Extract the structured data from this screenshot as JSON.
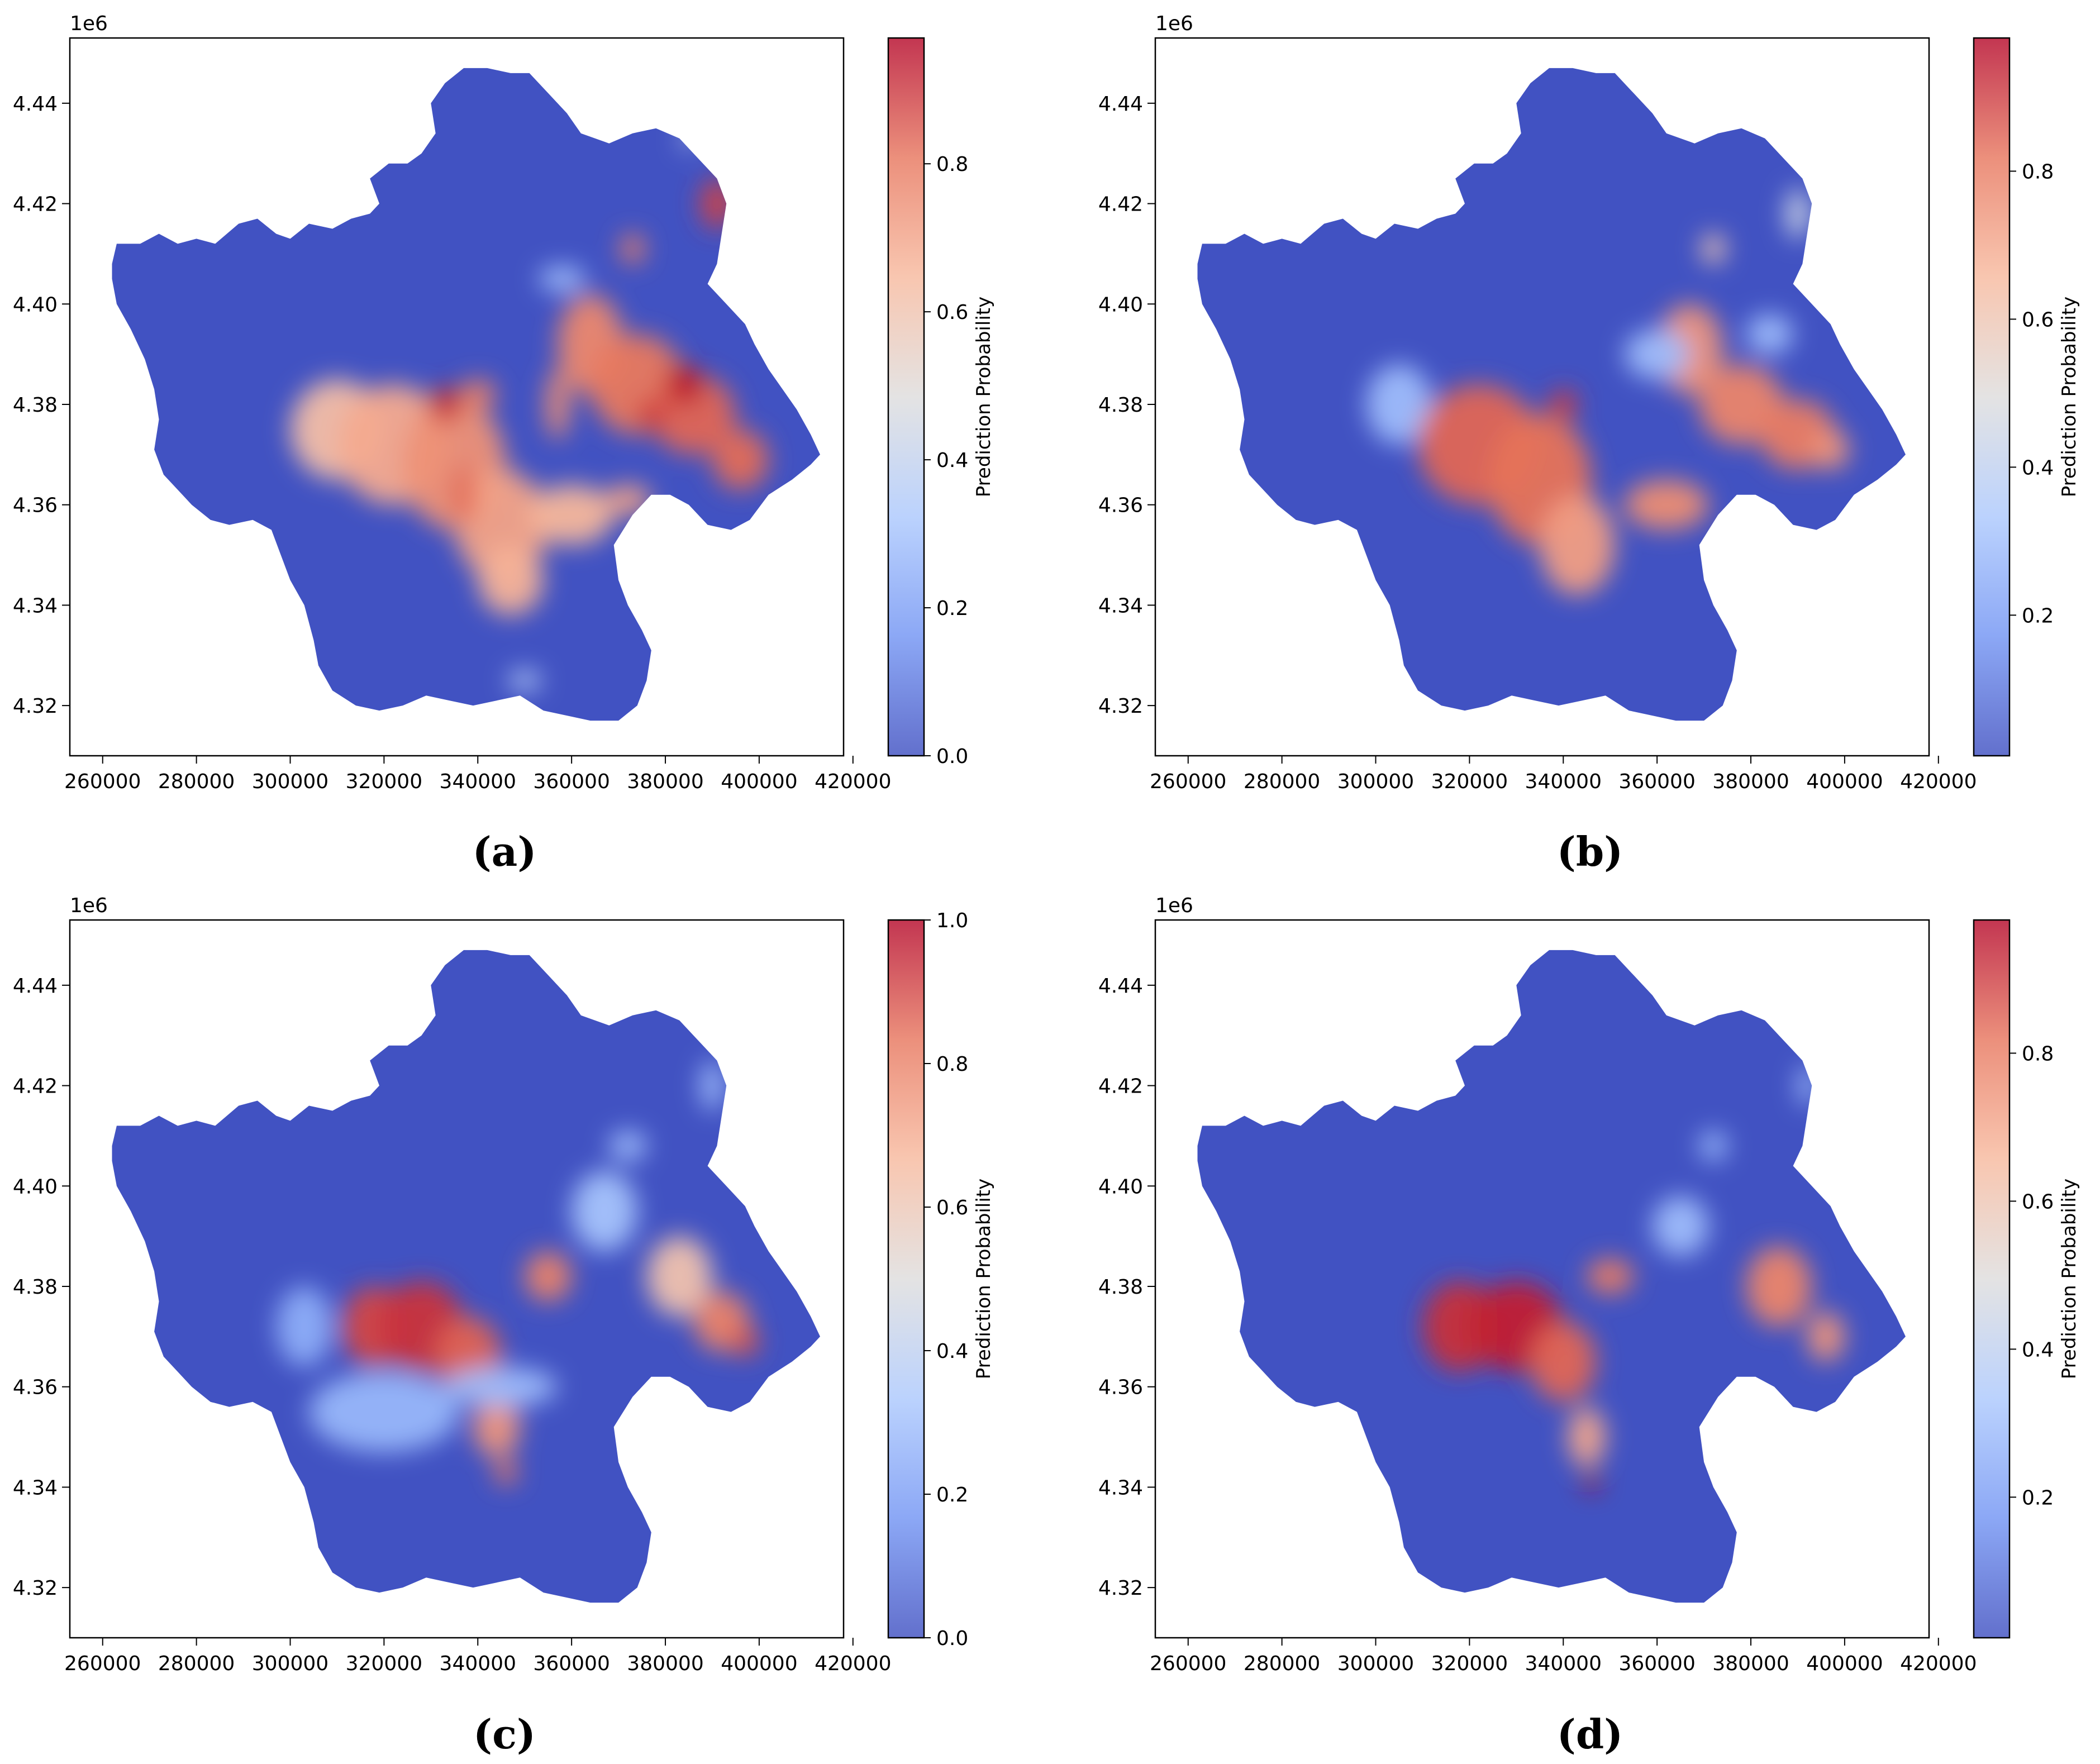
{
  "colormap": {
    "name": "coolwarm",
    "stops": [
      "#3b4cc0",
      "#6f92f3",
      "#aac7fd",
      "#dddcdc",
      "#f7b89c",
      "#e7745b",
      "#b40426"
    ],
    "region_fill": "#3b4cc0"
  },
  "chart_data": [
    {
      "type": "scatter",
      "panel_label": "(a)",
      "offset_text": "1e6",
      "x_ticks": [
        "260000",
        "280000",
        "300000",
        "320000",
        "340000",
        "360000",
        "380000",
        "400000",
        "420000"
      ],
      "y_ticks": [
        "4.44",
        "4.42",
        "4.40",
        "4.38",
        "4.36",
        "4.34",
        "4.32"
      ],
      "xlim": [
        253000,
        418000
      ],
      "ylim": [
        4310000,
        4453000
      ],
      "colorbar": {
        "label": "Prediction Probability",
        "ticks": [
          "0.0",
          "0.2",
          "0.4",
          "0.6",
          "0.8"
        ],
        "range": [
          0,
          0.97
        ]
      },
      "hotspots": [
        {
          "x": 310000,
          "y": 4375000,
          "rx": 10000,
          "ry": 10000,
          "value": 0.62
        },
        {
          "x": 322000,
          "y": 4372000,
          "rx": 12000,
          "ry": 12000,
          "value": 0.68
        },
        {
          "x": 335000,
          "y": 4368000,
          "rx": 11000,
          "ry": 13000,
          "value": 0.74
        },
        {
          "x": 345000,
          "y": 4356000,
          "rx": 10000,
          "ry": 11000,
          "value": 0.7
        },
        {
          "x": 347000,
          "y": 4345000,
          "rx": 7000,
          "ry": 7000,
          "value": 0.66
        },
        {
          "x": 360000,
          "y": 4358000,
          "rx": 9000,
          "ry": 6000,
          "value": 0.65
        },
        {
          "x": 372000,
          "y": 4361000,
          "rx": 5000,
          "ry": 3000,
          "value": 0.7
        },
        {
          "x": 333000,
          "y": 4380000,
          "rx": 3500,
          "ry": 3500,
          "value": 0.92
        },
        {
          "x": 337000,
          "y": 4362000,
          "rx": 2500,
          "ry": 6000,
          "value": 0.82
        },
        {
          "x": 340000,
          "y": 4382000,
          "rx": 4000,
          "ry": 3000,
          "value": 0.78
        },
        {
          "x": 364000,
          "y": 4392000,
          "rx": 7000,
          "ry": 10000,
          "value": 0.76
        },
        {
          "x": 374000,
          "y": 4384000,
          "rx": 10000,
          "ry": 10000,
          "value": 0.8
        },
        {
          "x": 386000,
          "y": 4378000,
          "rx": 9000,
          "ry": 8000,
          "value": 0.83
        },
        {
          "x": 396000,
          "y": 4369000,
          "rx": 6000,
          "ry": 6000,
          "value": 0.82
        },
        {
          "x": 384000,
          "y": 4384000,
          "rx": 4000,
          "ry": 4000,
          "value": 0.95
        },
        {
          "x": 377000,
          "y": 4378000,
          "rx": 3000,
          "ry": 3000,
          "value": 0.9
        },
        {
          "x": 391000,
          "y": 4420000,
          "rx": 3500,
          "ry": 5000,
          "value": 0.88
        },
        {
          "x": 373000,
          "y": 4411000,
          "rx": 2500,
          "ry": 3000,
          "value": 0.78
        },
        {
          "x": 357000,
          "y": 4380000,
          "rx": 2500,
          "ry": 7000,
          "value": 0.75
        },
        {
          "x": 358000,
          "y": 4405000,
          "rx": 5000,
          "ry": 2500,
          "value": 0.3
        },
        {
          "x": 350000,
          "y": 4325000,
          "rx": 3500,
          "ry": 2000,
          "value": 0.35
        },
        {
          "x": 385000,
          "y": 4433000,
          "rx": 1500,
          "ry": 2000,
          "value": 0.4
        }
      ]
    },
    {
      "type": "scatter",
      "panel_label": "(b)",
      "offset_text": "1e6",
      "x_ticks": [
        "260000",
        "280000",
        "300000",
        "320000",
        "340000",
        "360000",
        "380000",
        "400000",
        "420000"
      ],
      "y_ticks": [
        "4.44",
        "4.42",
        "4.40",
        "4.38",
        "4.36",
        "4.34",
        "4.32"
      ],
      "xlim": [
        253000,
        418000
      ],
      "ylim": [
        4310000,
        4453000
      ],
      "colorbar": {
        "label": "Prediction Probability",
        "ticks": [
          "0.2",
          "0.4",
          "0.6",
          "0.8"
        ],
        "range": [
          0.01,
          0.98
        ]
      },
      "hotspots": [
        {
          "x": 305000,
          "y": 4380000,
          "rx": 7000,
          "ry": 8000,
          "value": 0.3
        },
        {
          "x": 322000,
          "y": 4372000,
          "rx": 13000,
          "ry": 12000,
          "value": 0.84
        },
        {
          "x": 335000,
          "y": 4365000,
          "rx": 11000,
          "ry": 13000,
          "value": 0.82
        },
        {
          "x": 343000,
          "y": 4352000,
          "rx": 8000,
          "ry": 10000,
          "value": 0.72
        },
        {
          "x": 362000,
          "y": 4360000,
          "rx": 9000,
          "ry": 5000,
          "value": 0.76
        },
        {
          "x": 367000,
          "y": 4391000,
          "rx": 7000,
          "ry": 9000,
          "value": 0.74
        },
        {
          "x": 378000,
          "y": 4380000,
          "rx": 9000,
          "ry": 8000,
          "value": 0.78
        },
        {
          "x": 390000,
          "y": 4374000,
          "rx": 8000,
          "ry": 7000,
          "value": 0.8
        },
        {
          "x": 397000,
          "y": 4371000,
          "rx": 4000,
          "ry": 4000,
          "value": 0.74
        },
        {
          "x": 360000,
          "y": 4390000,
          "rx": 7000,
          "ry": 5000,
          "value": 0.3
        },
        {
          "x": 384000,
          "y": 4394000,
          "rx": 5000,
          "ry": 4000,
          "value": 0.3
        },
        {
          "x": 340000,
          "y": 4380000,
          "rx": 3000,
          "ry": 3000,
          "value": 0.9
        },
        {
          "x": 372000,
          "y": 4411000,
          "rx": 2500,
          "ry": 3000,
          "value": 0.6
        },
        {
          "x": 390000,
          "y": 4418000,
          "rx": 2500,
          "ry": 5000,
          "value": 0.45
        }
      ]
    },
    {
      "type": "scatter",
      "panel_label": "(c)",
      "offset_text": "1e6",
      "x_ticks": [
        "260000",
        "280000",
        "300000",
        "320000",
        "340000",
        "360000",
        "380000",
        "400000",
        "420000"
      ],
      "y_ticks": [
        "4.44",
        "4.42",
        "4.40",
        "4.38",
        "4.36",
        "4.34",
        "4.32"
      ],
      "xlim": [
        253000,
        418000
      ],
      "ylim": [
        4310000,
        4453000
      ],
      "colorbar": {
        "label": "Prediction Probability",
        "ticks": [
          "0.0",
          "0.2",
          "0.4",
          "0.6",
          "0.8",
          "1.0"
        ],
        "range": [
          0,
          1
        ]
      },
      "hotspots": [
        {
          "x": 320000,
          "y": 4355000,
          "rx": 16000,
          "ry": 8000,
          "value": 0.28
        },
        {
          "x": 303000,
          "y": 4372000,
          "rx": 6000,
          "ry": 8000,
          "value": 0.25
        },
        {
          "x": 318000,
          "y": 4372000,
          "rx": 7000,
          "ry": 8000,
          "value": 0.9
        },
        {
          "x": 328000,
          "y": 4372000,
          "rx": 9000,
          "ry": 9000,
          "value": 0.93
        },
        {
          "x": 338000,
          "y": 4366000,
          "rx": 7000,
          "ry": 8000,
          "value": 0.86
        },
        {
          "x": 344000,
          "y": 4352000,
          "rx": 5000,
          "ry": 6000,
          "value": 0.75
        },
        {
          "x": 346000,
          "y": 4343000,
          "rx": 2500,
          "ry": 2500,
          "value": 0.82
        },
        {
          "x": 355000,
          "y": 4382000,
          "rx": 5000,
          "ry": 5000,
          "value": 0.8
        },
        {
          "x": 367000,
          "y": 4395000,
          "rx": 7000,
          "ry": 8000,
          "value": 0.32
        },
        {
          "x": 383000,
          "y": 4382000,
          "rx": 7000,
          "ry": 8000,
          "value": 0.62
        },
        {
          "x": 392000,
          "y": 4373000,
          "rx": 6000,
          "ry": 6000,
          "value": 0.8
        },
        {
          "x": 397000,
          "y": 4369000,
          "rx": 3000,
          "ry": 3000,
          "value": 0.88
        },
        {
          "x": 372000,
          "y": 4408000,
          "rx": 4000,
          "ry": 3000,
          "value": 0.3
        },
        {
          "x": 390000,
          "y": 4420000,
          "rx": 2500,
          "ry": 5000,
          "value": 0.3
        },
        {
          "x": 345000,
          "y": 4360000,
          "rx": 12000,
          "ry": 4000,
          "value": 0.3
        }
      ]
    },
    {
      "type": "scatter",
      "panel_label": "(d)",
      "offset_text": "1e6",
      "x_ticks": [
        "260000",
        "280000",
        "300000",
        "320000",
        "340000",
        "360000",
        "380000",
        "400000",
        "420000"
      ],
      "y_ticks": [
        "4.44",
        "4.42",
        "4.40",
        "4.38",
        "4.36",
        "4.34",
        "4.32"
      ],
      "xlim": [
        253000,
        418000
      ],
      "ylim": [
        4310000,
        4453000
      ],
      "colorbar": {
        "label": "Prediction Probability",
        "ticks": [
          "0.2",
          "0.4",
          "0.6",
          "0.8"
        ],
        "range": [
          0.01,
          0.98
        ]
      },
      "hotspots": [
        {
          "x": 318000,
          "y": 4372000,
          "rx": 8000,
          "ry": 9000,
          "value": 0.92
        },
        {
          "x": 330000,
          "y": 4372000,
          "rx": 10000,
          "ry": 9000,
          "value": 0.94
        },
        {
          "x": 340000,
          "y": 4365000,
          "rx": 7000,
          "ry": 8000,
          "value": 0.84
        },
        {
          "x": 345000,
          "y": 4350000,
          "rx": 4000,
          "ry": 6000,
          "value": 0.7
        },
        {
          "x": 346000,
          "y": 4341000,
          "rx": 1800,
          "ry": 1800,
          "value": 0.98
        },
        {
          "x": 350000,
          "y": 4382000,
          "rx": 5000,
          "ry": 3500,
          "value": 0.8
        },
        {
          "x": 365000,
          "y": 4392000,
          "rx": 6000,
          "ry": 6000,
          "value": 0.3
        },
        {
          "x": 386000,
          "y": 4380000,
          "rx": 7000,
          "ry": 8000,
          "value": 0.78
        },
        {
          "x": 396000,
          "y": 4370000,
          "rx": 4000,
          "ry": 5000,
          "value": 0.74
        },
        {
          "x": 372000,
          "y": 4408000,
          "rx": 3000,
          "ry": 3000,
          "value": 0.28
        },
        {
          "x": 392000,
          "y": 4420000,
          "rx": 2000,
          "ry": 4000,
          "value": 0.3
        }
      ]
    }
  ]
}
